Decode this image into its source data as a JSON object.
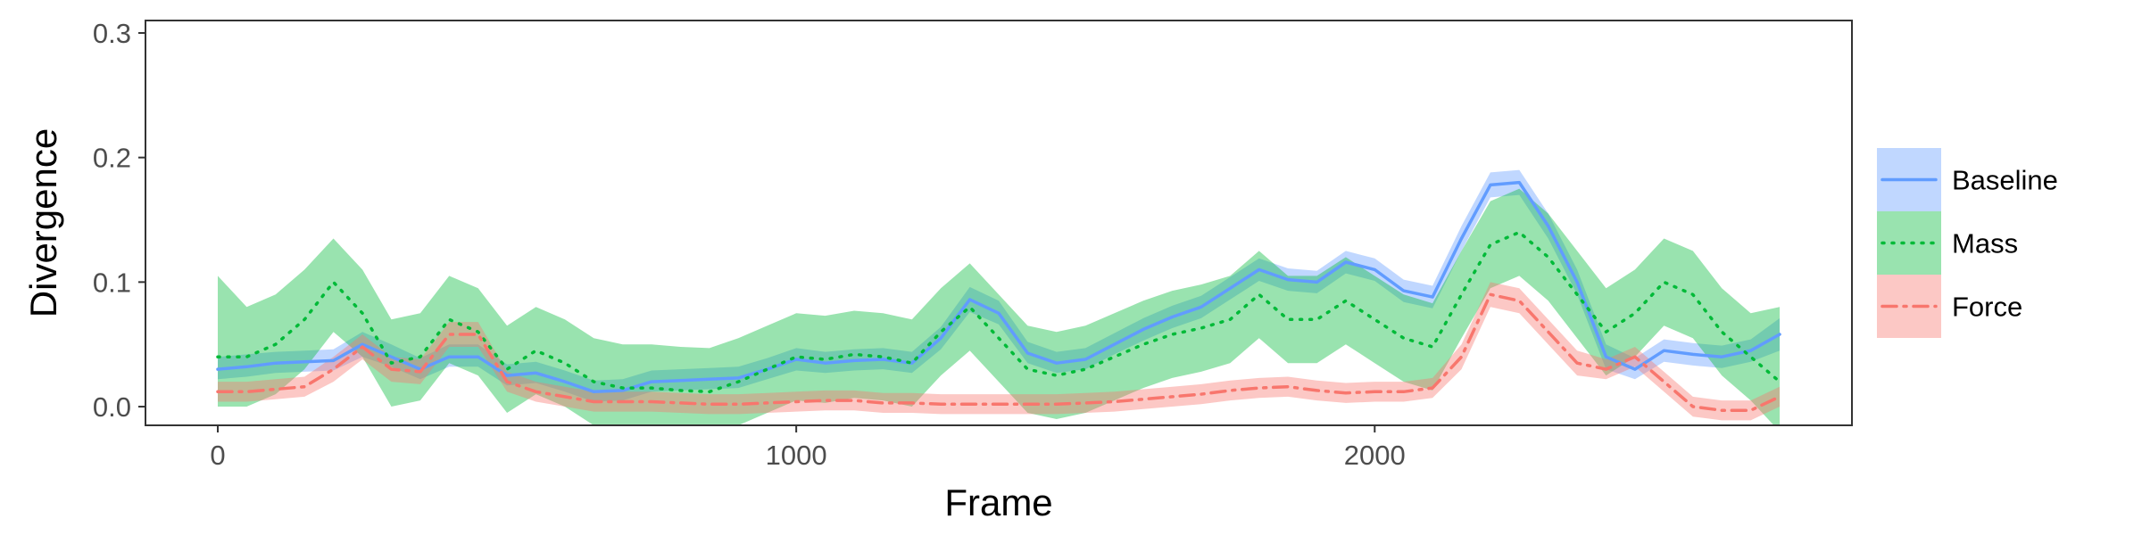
{
  "chart_data": {
    "type": "line",
    "xlabel": "Frame",
    "ylabel": "Divergence",
    "xlim": [
      -125,
      2825
    ],
    "ylim": [
      -0.015,
      0.31
    ],
    "x_ticks": [
      0,
      1000,
      2000
    ],
    "x_tick_labels": [
      "0",
      "1000",
      "2000"
    ],
    "y_ticks": [
      0.0,
      0.1,
      0.2,
      0.3
    ],
    "y_tick_labels": [
      "0.0",
      "0.1",
      "0.2",
      "0.3"
    ],
    "grid": false,
    "legend_position": "right",
    "series": [
      {
        "name": "Baseline",
        "color": "#619CFF",
        "line_style": "solid",
        "points": [
          [
            0,
            0.03,
            0.022,
            0.04
          ],
          [
            50,
            0.032,
            0.024,
            0.042
          ],
          [
            100,
            0.035,
            0.027,
            0.044
          ],
          [
            150,
            0.036,
            0.028,
            0.045
          ],
          [
            200,
            0.037,
            0.029,
            0.046
          ],
          [
            250,
            0.05,
            0.04,
            0.06
          ],
          [
            300,
            0.04,
            0.032,
            0.05
          ],
          [
            350,
            0.03,
            0.022,
            0.039
          ],
          [
            400,
            0.04,
            0.032,
            0.05
          ],
          [
            450,
            0.04,
            0.032,
            0.05
          ],
          [
            500,
            0.025,
            0.017,
            0.034
          ],
          [
            550,
            0.027,
            0.019,
            0.036
          ],
          [
            600,
            0.02,
            0.012,
            0.029
          ],
          [
            650,
            0.012,
            0.004,
            0.021
          ],
          [
            700,
            0.013,
            0.005,
            0.022
          ],
          [
            750,
            0.02,
            0.012,
            0.029
          ],
          [
            800,
            0.021,
            0.013,
            0.03
          ],
          [
            850,
            0.022,
            0.014,
            0.031
          ],
          [
            900,
            0.023,
            0.015,
            0.032
          ],
          [
            950,
            0.03,
            0.022,
            0.039
          ],
          [
            1000,
            0.038,
            0.029,
            0.047
          ],
          [
            1050,
            0.035,
            0.027,
            0.044
          ],
          [
            1100,
            0.037,
            0.029,
            0.046
          ],
          [
            1150,
            0.038,
            0.03,
            0.047
          ],
          [
            1200,
            0.035,
            0.027,
            0.044
          ],
          [
            1250,
            0.055,
            0.046,
            0.064
          ],
          [
            1300,
            0.086,
            0.076,
            0.096
          ],
          [
            1350,
            0.075,
            0.066,
            0.085
          ],
          [
            1400,
            0.043,
            0.035,
            0.052
          ],
          [
            1450,
            0.035,
            0.027,
            0.044
          ],
          [
            1500,
            0.038,
            0.03,
            0.047
          ],
          [
            1550,
            0.05,
            0.042,
            0.059
          ],
          [
            1600,
            0.062,
            0.053,
            0.071
          ],
          [
            1650,
            0.072,
            0.063,
            0.081
          ],
          [
            1700,
            0.08,
            0.071,
            0.089
          ],
          [
            1750,
            0.095,
            0.086,
            0.104
          ],
          [
            1800,
            0.11,
            0.101,
            0.119
          ],
          [
            1850,
            0.102,
            0.093,
            0.111
          ],
          [
            1900,
            0.1,
            0.091,
            0.109
          ],
          [
            1950,
            0.116,
            0.107,
            0.125
          ],
          [
            2000,
            0.11,
            0.101,
            0.119
          ],
          [
            2050,
            0.093,
            0.084,
            0.102
          ],
          [
            2100,
            0.088,
            0.079,
            0.097
          ],
          [
            2150,
            0.135,
            0.125,
            0.145
          ],
          [
            2200,
            0.178,
            0.168,
            0.188
          ],
          [
            2250,
            0.18,
            0.17,
            0.19
          ],
          [
            2300,
            0.145,
            0.135,
            0.155
          ],
          [
            2350,
            0.1,
            0.09,
            0.11
          ],
          [
            2400,
            0.04,
            0.03,
            0.05
          ],
          [
            2450,
            0.03,
            0.022,
            0.039
          ],
          [
            2500,
            0.045,
            0.036,
            0.054
          ],
          [
            2550,
            0.042,
            0.033,
            0.051
          ],
          [
            2600,
            0.04,
            0.031,
            0.049
          ],
          [
            2650,
            0.045,
            0.036,
            0.054
          ],
          [
            2700,
            0.058,
            0.045,
            0.071
          ]
        ]
      },
      {
        "name": "Mass",
        "color": "#00BA38",
        "line_style": "dotted",
        "points": [
          [
            0,
            0.04,
            0.0,
            0.105
          ],
          [
            50,
            0.04,
            0.0,
            0.08
          ],
          [
            100,
            0.05,
            0.01,
            0.09
          ],
          [
            150,
            0.07,
            0.03,
            0.11
          ],
          [
            200,
            0.1,
            0.06,
            0.135
          ],
          [
            250,
            0.075,
            0.04,
            0.11
          ],
          [
            300,
            0.035,
            0.0,
            0.07
          ],
          [
            350,
            0.04,
            0.005,
            0.075
          ],
          [
            400,
            0.07,
            0.035,
            0.105
          ],
          [
            450,
            0.06,
            0.025,
            0.095
          ],
          [
            500,
            0.03,
            -0.005,
            0.065
          ],
          [
            550,
            0.045,
            0.01,
            0.08
          ],
          [
            600,
            0.035,
            0.0,
            0.07
          ],
          [
            650,
            0.02,
            -0.015,
            0.055
          ],
          [
            700,
            0.015,
            -0.02,
            0.05
          ],
          [
            750,
            0.015,
            -0.02,
            0.05
          ],
          [
            800,
            0.013,
            -0.02,
            0.048
          ],
          [
            850,
            0.012,
            -0.02,
            0.047
          ],
          [
            900,
            0.02,
            -0.015,
            0.055
          ],
          [
            950,
            0.03,
            -0.005,
            0.065
          ],
          [
            1000,
            0.04,
            0.005,
            0.075
          ],
          [
            1050,
            0.038,
            0.003,
            0.073
          ],
          [
            1100,
            0.042,
            0.007,
            0.077
          ],
          [
            1150,
            0.04,
            0.005,
            0.075
          ],
          [
            1200,
            0.035,
            0.0,
            0.07
          ],
          [
            1250,
            0.06,
            0.025,
            0.095
          ],
          [
            1300,
            0.08,
            0.045,
            0.115
          ],
          [
            1350,
            0.055,
            0.02,
            0.09
          ],
          [
            1400,
            0.03,
            -0.005,
            0.065
          ],
          [
            1450,
            0.025,
            -0.01,
            0.06
          ],
          [
            1500,
            0.03,
            -0.005,
            0.065
          ],
          [
            1550,
            0.04,
            0.005,
            0.075
          ],
          [
            1600,
            0.05,
            0.015,
            0.085
          ],
          [
            1650,
            0.058,
            0.023,
            0.093
          ],
          [
            1700,
            0.063,
            0.028,
            0.098
          ],
          [
            1750,
            0.07,
            0.035,
            0.105
          ],
          [
            1800,
            0.09,
            0.055,
            0.125
          ],
          [
            1850,
            0.07,
            0.035,
            0.105
          ],
          [
            1900,
            0.07,
            0.035,
            0.105
          ],
          [
            1950,
            0.085,
            0.05,
            0.12
          ],
          [
            2000,
            0.07,
            0.035,
            0.105
          ],
          [
            2050,
            0.055,
            0.02,
            0.09
          ],
          [
            2100,
            0.048,
            0.013,
            0.083
          ],
          [
            2150,
            0.09,
            0.055,
            0.125
          ],
          [
            2200,
            0.13,
            0.095,
            0.165
          ],
          [
            2250,
            0.14,
            0.105,
            0.175
          ],
          [
            2300,
            0.12,
            0.085,
            0.155
          ],
          [
            2350,
            0.09,
            0.055,
            0.125
          ],
          [
            2400,
            0.06,
            0.025,
            0.095
          ],
          [
            2450,
            0.075,
            0.04,
            0.11
          ],
          [
            2500,
            0.1,
            0.065,
            0.135
          ],
          [
            2550,
            0.09,
            0.055,
            0.125
          ],
          [
            2600,
            0.06,
            0.025,
            0.095
          ],
          [
            2650,
            0.04,
            0.005,
            0.075
          ],
          [
            2700,
            0.02,
            -0.02,
            0.08
          ]
        ]
      },
      {
        "name": "Force",
        "color": "#F8766D",
        "line_style": "dashdot",
        "points": [
          [
            0,
            0.012,
            0.004,
            0.02
          ],
          [
            50,
            0.012,
            0.004,
            0.02
          ],
          [
            100,
            0.014,
            0.006,
            0.022
          ],
          [
            150,
            0.016,
            0.008,
            0.024
          ],
          [
            200,
            0.03,
            0.02,
            0.04
          ],
          [
            250,
            0.048,
            0.038,
            0.058
          ],
          [
            300,
            0.03,
            0.02,
            0.04
          ],
          [
            350,
            0.028,
            0.018,
            0.038
          ],
          [
            400,
            0.058,
            0.048,
            0.068
          ],
          [
            450,
            0.058,
            0.048,
            0.068
          ],
          [
            500,
            0.02,
            0.012,
            0.028
          ],
          [
            550,
            0.012,
            0.004,
            0.02
          ],
          [
            600,
            0.008,
            0.0,
            0.016
          ],
          [
            650,
            0.004,
            -0.004,
            0.012
          ],
          [
            700,
            0.004,
            -0.004,
            0.012
          ],
          [
            750,
            0.004,
            -0.004,
            0.012
          ],
          [
            800,
            0.003,
            -0.005,
            0.011
          ],
          [
            850,
            0.002,
            -0.006,
            0.01
          ],
          [
            900,
            0.002,
            -0.006,
            0.01
          ],
          [
            950,
            0.003,
            -0.005,
            0.011
          ],
          [
            1000,
            0.004,
            -0.004,
            0.012
          ],
          [
            1050,
            0.005,
            -0.003,
            0.013
          ],
          [
            1100,
            0.005,
            -0.003,
            0.013
          ],
          [
            1150,
            0.003,
            -0.005,
            0.011
          ],
          [
            1200,
            0.003,
            -0.005,
            0.011
          ],
          [
            1250,
            0.002,
            -0.006,
            0.01
          ],
          [
            1300,
            0.002,
            -0.006,
            0.01
          ],
          [
            1350,
            0.002,
            -0.006,
            0.01
          ],
          [
            1400,
            0.002,
            -0.006,
            0.01
          ],
          [
            1450,
            0.002,
            -0.006,
            0.01
          ],
          [
            1500,
            0.003,
            -0.005,
            0.011
          ],
          [
            1550,
            0.004,
            -0.004,
            0.012
          ],
          [
            1600,
            0.006,
            -0.002,
            0.014
          ],
          [
            1650,
            0.008,
            0.0,
            0.016
          ],
          [
            1700,
            0.01,
            0.002,
            0.018
          ],
          [
            1750,
            0.013,
            0.005,
            0.021
          ],
          [
            1800,
            0.015,
            0.007,
            0.023
          ],
          [
            1850,
            0.016,
            0.008,
            0.024
          ],
          [
            1900,
            0.013,
            0.005,
            0.021
          ],
          [
            1950,
            0.011,
            0.003,
            0.019
          ],
          [
            2000,
            0.012,
            0.004,
            0.02
          ],
          [
            2050,
            0.012,
            0.004,
            0.02
          ],
          [
            2100,
            0.015,
            0.007,
            0.023
          ],
          [
            2150,
            0.04,
            0.03,
            0.05
          ],
          [
            2200,
            0.09,
            0.08,
            0.1
          ],
          [
            2250,
            0.085,
            0.075,
            0.095
          ],
          [
            2300,
            0.06,
            0.05,
            0.07
          ],
          [
            2350,
            0.035,
            0.025,
            0.045
          ],
          [
            2400,
            0.03,
            0.022,
            0.038
          ],
          [
            2450,
            0.04,
            0.032,
            0.048
          ],
          [
            2500,
            0.02,
            0.012,
            0.028
          ],
          [
            2550,
            0.0,
            -0.008,
            0.008
          ],
          [
            2600,
            -0.003,
            -0.011,
            0.005
          ],
          [
            2650,
            -0.003,
            -0.011,
            0.005
          ],
          [
            2700,
            0.008,
            0.0,
            0.016
          ]
        ]
      }
    ]
  }
}
